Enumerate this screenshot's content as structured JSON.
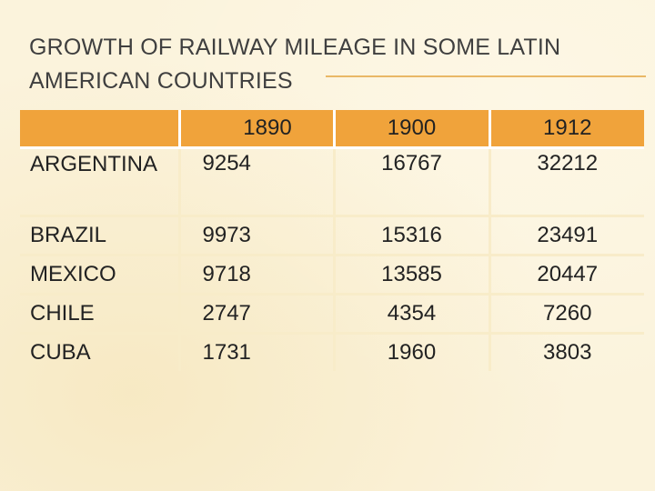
{
  "slide": {
    "title": "GROWTH OF RAILWAY MILEAGE IN SOME LATIN AMERICAN COUNTRIES"
  },
  "table": {
    "years": [
      "1890",
      "1900",
      "1912"
    ],
    "rows": [
      {
        "country": "ARGENTINA",
        "values": [
          "9254",
          "16767",
          "32212"
        ]
      },
      {
        "country": "BRAZIL",
        "values": [
          "9973",
          "15316",
          "23491"
        ]
      },
      {
        "country": "MEXICO",
        "values": [
          "9718",
          "13585",
          "20447"
        ]
      },
      {
        "country": "CHILE",
        "values": [
          "2747",
          "4354",
          "7260"
        ]
      },
      {
        "country": "CUBA",
        "values": [
          "1731",
          "1960",
          "3803"
        ]
      }
    ]
  },
  "colors": {
    "header_fill": "#f0a33b",
    "background": "#fbf3dc",
    "title_rule": "#e9b866",
    "title_text": "#3f3f3f"
  }
}
